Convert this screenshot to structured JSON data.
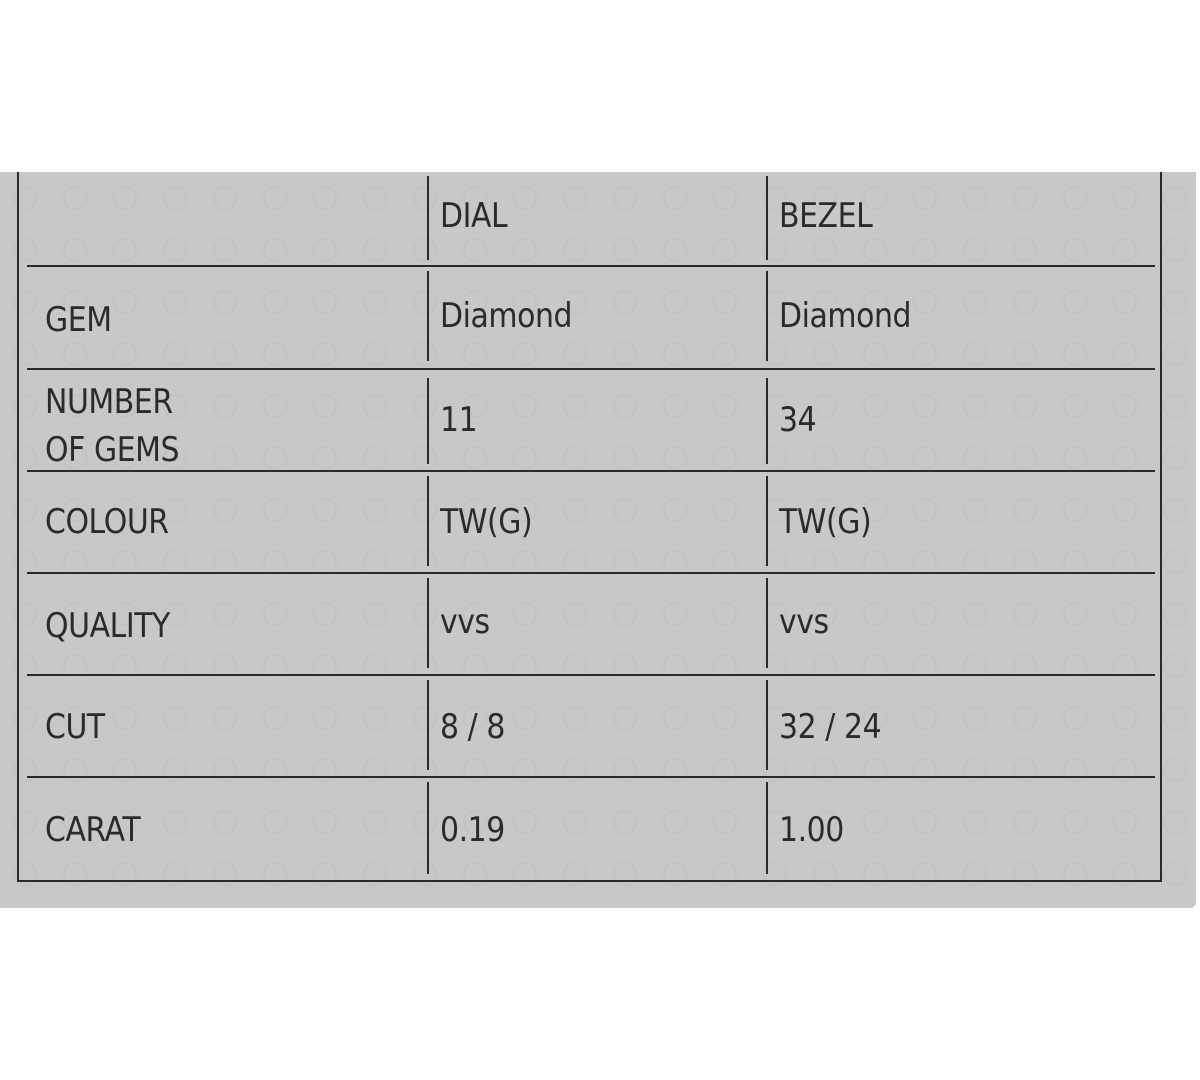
{
  "table": {
    "columns": [
      "",
      "DIAL",
      "BEZEL"
    ],
    "rows": [
      {
        "label": "GEM",
        "dial": "Diamond",
        "bezel": "Diamond"
      },
      {
        "label_line1": "NUMBER",
        "label_line2": "OF GEMS",
        "dial": "11",
        "bezel": "34"
      },
      {
        "label": "COLOUR",
        "dial": "TW(G)",
        "bezel": "TW(G)"
      },
      {
        "label": "QUALITY",
        "dial": "vvs",
        "bezel": "vvs"
      },
      {
        "label": "CUT",
        "dial": "8 / 8",
        "bezel": "32 / 24"
      },
      {
        "label": "CARAT",
        "dial": "0.19",
        "bezel": "1.00"
      }
    ]
  }
}
